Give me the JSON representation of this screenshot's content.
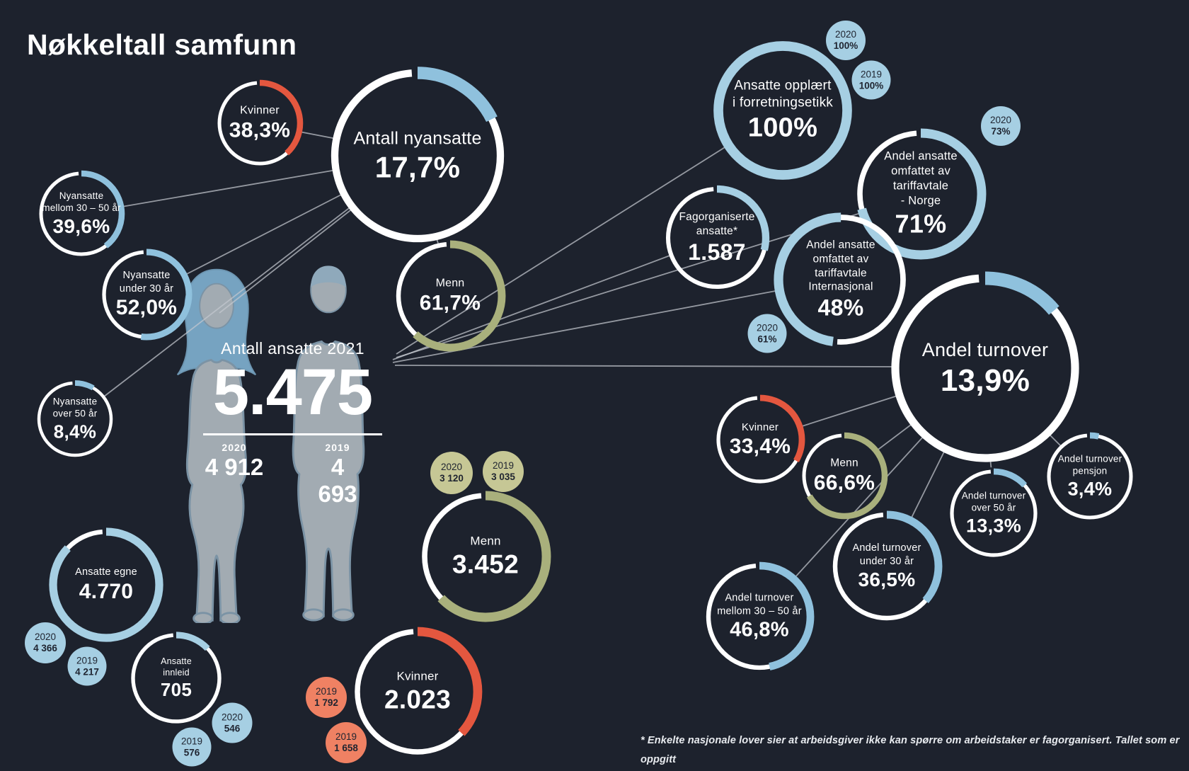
{
  "title": "Nøkkeltall samfunn",
  "footnote": "* Enkelte nasjonale lover sier at arbeidsgiver ikke kan spørre om arbeidstaker er fagorganisert. Tallet som er oppgitt\nstammer fra arbeidstakere som aktivt har valgt å trekke fagforeningskontigent fra lønnsslipp.",
  "colors": {
    "background": "#1d222d",
    "white": "#ffffff",
    "blue": "#8fc1dd",
    "blue_light": "#a6cfe3",
    "red": "#e4573f",
    "orange": "#ef8163",
    "green": "#a9b07c",
    "green_light": "#c6c795",
    "line": "#c3c8cf"
  },
  "center": {
    "label": "Antall ansatte 2021",
    "value": "5.475",
    "year_left": {
      "year": "2020",
      "value": "4 912"
    },
    "year_right": {
      "year": "2019",
      "value": "4 693"
    }
  },
  "bubbles": {
    "nyansatte_kvinner": {
      "label": "Kvinner",
      "value": "38,3%",
      "pct": 0.383,
      "start": 0,
      "color": "red"
    },
    "antall_nyansatte": {
      "label": "Antall nyansatte",
      "value": "17,7%",
      "pct": 0.177,
      "start": 0,
      "color": "blue"
    },
    "nyansatte_mellom": {
      "label": "Nyansatte\nmellom 30 – 50 år",
      "value": "39,6%",
      "pct": 0.396,
      "start": 0,
      "color": "blue"
    },
    "nyansatte_under30": {
      "label": "Nyansatte\nunder 30 år",
      "value": "52,0%",
      "pct": 0.52,
      "start": 0,
      "color": "blue"
    },
    "nyansatte_over50": {
      "label": "Nyansatte\nover 50 år",
      "value": "8,4%",
      "pct": 0.084,
      "start": 0,
      "color": "blue"
    },
    "nyansatte_menn": {
      "label": "Menn",
      "value": "61,7%",
      "pct": 0.617,
      "start": 0,
      "color": "green"
    },
    "opplaert": {
      "label": "Ansatte opplært\ni forretningsetikk",
      "value": "100%",
      "pct": 1,
      "start": 0,
      "color": "blue_light"
    },
    "fagorganiserte": {
      "label": "Fagorganiserte\nansatte*",
      "value": "1.587",
      "pct": 0.29,
      "start": 0,
      "color": "blue_light"
    },
    "tariff_norge": {
      "label": "Andel ansatte\nomfattet av\ntariffavtale\n- Norge",
      "value": "71%",
      "pct": 0.71,
      "start": 0,
      "color": "blue_light"
    },
    "tariff_internasjonal": {
      "label": "Andel ansatte\nomfattet av\ntariffavtale\nInternasjonal",
      "value": "48%",
      "pct": 0.48,
      "start": 0.52,
      "color": "blue_light"
    },
    "andel_turnover": {
      "label": "Andel turnover",
      "value": "13,9%",
      "pct": 0.139,
      "start": 0,
      "color": "blue"
    },
    "turnover_kvinner": {
      "label": "Kvinner",
      "value": "33,4%",
      "pct": 0.334,
      "start": 0,
      "color": "red"
    },
    "turnover_menn": {
      "label": "Menn",
      "value": "66,6%",
      "pct": 0.666,
      "start": 0,
      "color": "green"
    },
    "turnover_over50": {
      "label": "Andel turnover\nover 50 år",
      "value": "13,3%",
      "pct": 0.133,
      "start": 0,
      "color": "blue"
    },
    "turnover_pensjon": {
      "label": "Andel turnover\npensjon",
      "value": "3,4%",
      "pct": 0.034,
      "start": 0,
      "color": "blue"
    },
    "turnover_under30": {
      "label": "Andel turnover\nunder 30 år",
      "value": "36,5%",
      "pct": 0.365,
      "start": 0,
      "color": "blue"
    },
    "turnover_mellom": {
      "label": "Andel turnover\nmellom 30 – 50 år",
      "value": "46,8%",
      "pct": 0.468,
      "start": 0,
      "color": "blue"
    },
    "ansatte_egne": {
      "label": "Ansatte egne",
      "value": "4.770",
      "pct": 0.871,
      "start": 0,
      "color": "blue_light"
    },
    "ansatte_innleid": {
      "label": "Ansatte\ninnleid",
      "value": "705",
      "pct": 0.129,
      "start": 0,
      "color": "blue_light"
    },
    "ansatte_menn": {
      "label": "Menn",
      "value": "3.452",
      "pct": 0.63,
      "start": 0,
      "color": "green"
    },
    "ansatte_kvinner": {
      "label": "Kvinner",
      "value": "2.023",
      "pct": 0.37,
      "start": 0,
      "color": "red"
    }
  },
  "satellites": {
    "opplaert_2020": {
      "year": "2020",
      "value": "100%"
    },
    "opplaert_2019": {
      "year": "2019",
      "value": "100%"
    },
    "norge_2020": {
      "year": "2020",
      "value": "73%"
    },
    "internasjonal_2020": {
      "year": "2020",
      "value": "61%"
    },
    "egne_2020": {
      "year": "2020",
      "value": "4 366"
    },
    "egne_2019": {
      "year": "2019",
      "value": "4 217"
    },
    "innleid_2020": {
      "year": "2020",
      "value": "546"
    },
    "innleid_2019": {
      "year": "2019",
      "value": "576"
    },
    "menn_2020": {
      "year": "2020",
      "value": "3 120"
    },
    "menn_2019": {
      "year": "2019",
      "value": "3 035"
    },
    "kvinner_a": {
      "year": "2019",
      "value": "1 792"
    },
    "kvinner_b": {
      "year": "2019",
      "value": "1 658"
    }
  },
  "chart_data": {
    "type": "pie",
    "title": "Nøkkeltall samfunn",
    "subtype": "donut-kpi-infographic",
    "metrics": [
      {
        "label": "Antall nyansatte",
        "value_pct": 17.7
      },
      {
        "label": "Nyansatte kvinner",
        "value_pct": 38.3
      },
      {
        "label": "Nyansatte menn",
        "value_pct": 61.7
      },
      {
        "label": "Nyansatte mellom 30 – 50 år",
        "value_pct": 39.6
      },
      {
        "label": "Nyansatte under 30 år",
        "value_pct": 52.0
      },
      {
        "label": "Nyansatte over 50 år",
        "value_pct": 8.4
      },
      {
        "label": "Antall ansatte 2021",
        "value": 5475,
        "history": [
          {
            "year": "2020",
            "value": 4912
          },
          {
            "year": "2019",
            "value": 4693
          }
        ]
      },
      {
        "label": "Ansatte egne",
        "value": 4770,
        "history": [
          {
            "year": "2020",
            "value": 4366
          },
          {
            "year": "2019",
            "value": 4217
          }
        ]
      },
      {
        "label": "Ansatte innleid",
        "value": 705,
        "history": [
          {
            "year": "2020",
            "value": 546
          },
          {
            "year": "2019",
            "value": 576
          }
        ]
      },
      {
        "label": "Menn",
        "value": 3452,
        "history": [
          {
            "year": "2020",
            "value": 3120
          },
          {
            "year": "2019",
            "value": 3035
          }
        ]
      },
      {
        "label": "Kvinner",
        "value": 2023,
        "history": [
          {
            "year": "2019",
            "value": 1792
          },
          {
            "year": "2019",
            "value": 1658
          }
        ]
      },
      {
        "label": "Ansatte opplært i forretningsetikk",
        "value_pct": 100,
        "history": [
          {
            "year": "2020",
            "value": "100%"
          },
          {
            "year": "2019",
            "value": "100%"
          }
        ]
      },
      {
        "label": "Fagorganiserte ansatte*",
        "value": 1587
      },
      {
        "label": "Andel ansatte omfattet av tariffavtale - Norge",
        "value_pct": 71,
        "history": [
          {
            "year": "2020",
            "value": "73%"
          }
        ]
      },
      {
        "label": "Andel ansatte omfattet av tariffavtale Internasjonal",
        "value_pct": 48,
        "history": [
          {
            "year": "2020",
            "value": "61%"
          }
        ]
      },
      {
        "label": "Andel turnover",
        "value_pct": 13.9
      },
      {
        "label": "Turnover kvinner",
        "value_pct": 33.4
      },
      {
        "label": "Turnover menn",
        "value_pct": 66.6
      },
      {
        "label": "Andel turnover over 50 år",
        "value_pct": 13.3
      },
      {
        "label": "Andel turnover pensjon",
        "value_pct": 3.4
      },
      {
        "label": "Andel turnover under 30 år",
        "value_pct": 36.5
      },
      {
        "label": "Andel turnover mellom 30 – 50 år",
        "value_pct": 46.8
      }
    ]
  }
}
